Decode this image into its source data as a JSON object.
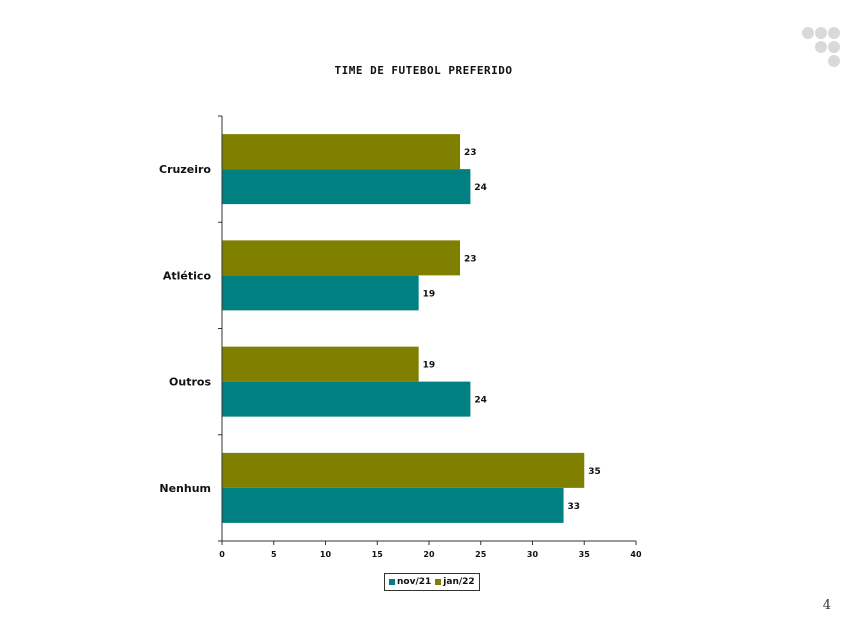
{
  "page": {
    "page_number": "4"
  },
  "chart_data": {
    "type": "bar",
    "orientation": "horizontal",
    "title": "TIME DE FUTEBOL PREFERIDO",
    "categories": [
      "Cruzeiro",
      "Atlético",
      "Outros",
      "Nenhum"
    ],
    "series": [
      {
        "name": "nov/21",
        "color": "#008080",
        "values": [
          24,
          19,
          24,
          33
        ]
      },
      {
        "name": "jan/22",
        "color": "#808000",
        "values": [
          23,
          23,
          19,
          35
        ]
      }
    ],
    "xlim": [
      0,
      40
    ],
    "xticks": [
      0,
      5,
      10,
      15,
      20,
      25,
      30,
      35,
      40
    ],
    "xlabel": "",
    "ylabel": "",
    "grid": false,
    "data_labels": true,
    "legend_position": "bottom"
  },
  "colors": {
    "logo_dot": "#d9d9d9"
  }
}
